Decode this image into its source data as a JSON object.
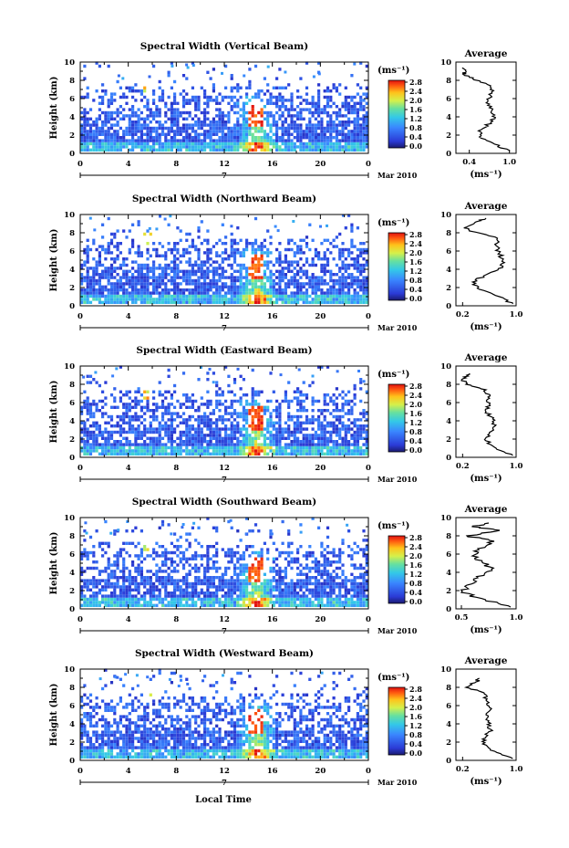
{
  "figure": {
    "xlabel": "Local Time"
  },
  "chart_data": [
    {
      "type": "heatmap",
      "title": "Spectral Width (Vertical Beam)",
      "ylabel": "Height (km)",
      "x_ticks": [
        "0",
        "4",
        "8",
        "12",
        "16",
        "20",
        "0"
      ],
      "y_ticks": [
        "0",
        "2",
        "4",
        "6",
        "8",
        "10"
      ],
      "date_label": "7",
      "month_label": "Mar 2010",
      "xlim": [
        0,
        24
      ],
      "ylim": [
        0,
        10
      ],
      "colorbar": {
        "unit": "(ms⁻¹)",
        "ticks": [
          "0.0",
          "0.4",
          "0.8",
          "1.2",
          "1.6",
          "2.0",
          "2.4",
          "2.8"
        ]
      },
      "profile": {
        "title": "Average",
        "xlabel": "(ms⁻¹)",
        "x_ticks": [
          "0.4",
          "1.0"
        ],
        "x_tick_values": [
          0.4,
          1.0
        ],
        "xlim": [
          0.2,
          1.1
        ],
        "y_ticks": [
          "0",
          "2",
          "4",
          "6",
          "8",
          "10"
        ],
        "height": [
          0.2,
          1,
          1.8,
          2.6,
          3.4,
          4.2,
          5,
          5.8,
          6.6,
          7.4,
          8.2,
          8.6,
          9.0,
          9.4
        ],
        "value": [
          1.0,
          0.78,
          0.55,
          0.58,
          0.72,
          0.78,
          0.7,
          0.68,
          0.74,
          0.72,
          0.45,
          0.32,
          0.35,
          0.3
        ]
      }
    },
    {
      "type": "heatmap",
      "title": "Spectral Width (Northward Beam)",
      "ylabel": "Height (km)",
      "x_ticks": [
        "0",
        "4",
        "8",
        "12",
        "16",
        "20",
        "0"
      ],
      "y_ticks": [
        "0",
        "2",
        "4",
        "6",
        "8",
        "10"
      ],
      "date_label": "7",
      "month_label": "Mar 2010",
      "xlim": [
        0,
        24
      ],
      "ylim": [
        0,
        10
      ],
      "colorbar": {
        "unit": "(ms⁻¹)",
        "ticks": [
          "0.0",
          "0.4",
          "0.8",
          "1.2",
          "1.6",
          "2.0",
          "2.4",
          "2.8"
        ]
      },
      "profile": {
        "title": "Average",
        "xlabel": "(ms⁻¹)",
        "x_ticks": [
          "0.2",
          "1.0"
        ],
        "x_tick_values": [
          0.2,
          1.0
        ],
        "xlim": [
          0.1,
          1.0
        ],
        "y_ticks": [
          "0",
          "2",
          "4",
          "6",
          "8",
          "10"
        ],
        "height": [
          0.2,
          1,
          1.8,
          2.6,
          3.4,
          4.2,
          5,
          5.8,
          6.6,
          7.4,
          8.2,
          8.6,
          9.2,
          9.6
        ],
        "value": [
          0.95,
          0.75,
          0.45,
          0.35,
          0.55,
          0.8,
          0.8,
          0.75,
          0.7,
          0.72,
          0.3,
          0.25,
          0.4,
          0.55
        ]
      }
    },
    {
      "type": "heatmap",
      "title": "Spectral Width (Eastward Beam)",
      "ylabel": "Height (km)",
      "x_ticks": [
        "0",
        "4",
        "8",
        "12",
        "16",
        "20",
        "0"
      ],
      "y_ticks": [
        "0",
        "2",
        "4",
        "6",
        "8",
        "10"
      ],
      "date_label": "7",
      "month_label": "Mar 2010",
      "xlim": [
        0,
        24
      ],
      "ylim": [
        0,
        10
      ],
      "colorbar": {
        "unit": "(ms⁻¹)",
        "ticks": [
          "0.0",
          "0.4",
          "0.8",
          "1.2",
          "1.6",
          "2.0",
          "2.4",
          "2.8"
        ]
      },
      "profile": {
        "title": "Average",
        "xlabel": "(ms⁻¹)",
        "x_ticks": [
          "0.2",
          "1.0"
        ],
        "x_tick_values": [
          0.2,
          1.0
        ],
        "xlim": [
          0.1,
          1.0
        ],
        "y_ticks": [
          "0",
          "2",
          "4",
          "6",
          "8",
          "10"
        ],
        "height": [
          0.2,
          1,
          1.8,
          2.6,
          3.4,
          4.2,
          5,
          5.8,
          6.6,
          7.4,
          8.0,
          8.6,
          9.2
        ],
        "value": [
          0.95,
          0.7,
          0.55,
          0.6,
          0.68,
          0.65,
          0.55,
          0.6,
          0.58,
          0.55,
          0.25,
          0.2,
          0.3
        ]
      }
    },
    {
      "type": "heatmap",
      "title": "Spectral Width (Southward Beam)",
      "ylabel": "Height (km)",
      "x_ticks": [
        "0",
        "4",
        "8",
        "12",
        "16",
        "20",
        "0"
      ],
      "y_ticks": [
        "0",
        "2",
        "4",
        "6",
        "8",
        "10"
      ],
      "date_label": "7",
      "month_label": "Mar 2010",
      "xlim": [
        0,
        24
      ],
      "ylim": [
        0,
        10
      ],
      "colorbar": {
        "unit": "(ms⁻¹)",
        "ticks": [
          "0.0",
          "0.4",
          "0.8",
          "1.2",
          "1.6",
          "2.0",
          "2.4",
          "2.8"
        ]
      },
      "profile": {
        "title": "Average",
        "xlabel": "(ms⁻¹)",
        "x_ticks": [
          "0.5",
          "1.0"
        ],
        "x_tick_values": [
          0.5,
          1.0
        ],
        "xlim": [
          0.45,
          1.0
        ],
        "y_ticks": [
          "0",
          "2",
          "4",
          "6",
          "8",
          "10"
        ],
        "height": [
          0.2,
          1,
          1.8,
          2.6,
          3.4,
          4.2,
          5,
          5.8,
          6.6,
          7.4,
          8.0,
          8.6,
          9.0,
          9.4
        ],
        "value": [
          0.95,
          0.72,
          0.5,
          0.55,
          0.65,
          0.78,
          0.7,
          0.6,
          0.65,
          0.8,
          0.55,
          0.85,
          0.6,
          0.75
        ]
      }
    },
    {
      "type": "heatmap",
      "title": "Spectral Width (Westward Beam)",
      "ylabel": "Height (km)",
      "x_ticks": [
        "0",
        "4",
        "8",
        "12",
        "16",
        "20",
        "0"
      ],
      "y_ticks": [
        "0",
        "2",
        "4",
        "6",
        "8",
        "10"
      ],
      "date_label": "7",
      "month_label": "Mar 2010",
      "xlim": [
        0,
        24
      ],
      "ylim": [
        0,
        10
      ],
      "colorbar": {
        "unit": "(ms⁻¹)",
        "ticks": [
          "0.0",
          "0.4",
          "0.8",
          "1.2",
          "1.6",
          "2.0",
          "2.4",
          "2.8"
        ]
      },
      "profile": {
        "title": "Average",
        "xlabel": "(ms⁻¹)",
        "x_ticks": [
          "0.2",
          "1.0"
        ],
        "x_tick_values": [
          0.2,
          1.0
        ],
        "xlim": [
          0.1,
          1.0
        ],
        "y_ticks": [
          "0",
          "2",
          "4",
          "6",
          "8",
          "10"
        ],
        "height": [
          0.2,
          1,
          1.8,
          2.6,
          3.4,
          4.2,
          5,
          5.8,
          6.6,
          7.4,
          8.0,
          8.6,
          9.0
        ],
        "value": [
          0.95,
          0.68,
          0.5,
          0.55,
          0.62,
          0.58,
          0.55,
          0.6,
          0.55,
          0.52,
          0.25,
          0.4,
          0.45
        ]
      }
    }
  ]
}
